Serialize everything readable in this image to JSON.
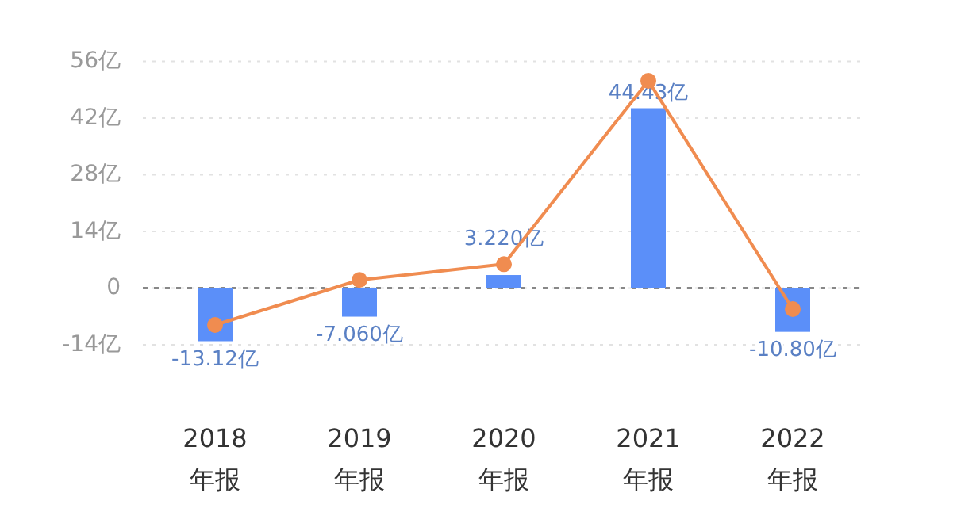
{
  "chart_data": {
    "type": "bar",
    "categories": [
      "2018\n年报",
      "2019\n年报",
      "2020\n年报",
      "2021\n年报",
      "2022\n年报"
    ],
    "series": [
      {
        "color": "#5b8ff9",
        "values": [
          -13.12,
          -7.06,
          3.22,
          44.43,
          -10.8
        ],
        "value_labels": [
          "-13.12亿",
          "-7.060亿",
          "3.220亿",
          "44.43亿",
          "-10.80亿"
        ]
      },
      {
        "type": "line",
        "color": "#f08c50",
        "values": [
          -9.1,
          2.0,
          5.9,
          51.2,
          -5.2
        ],
        "marker": "circle"
      }
    ],
    "ylim": [
      -14,
      56
    ],
    "yticks": [
      {
        "value": -14,
        "label": "-14亿"
      },
      0,
      {
        "value": 14,
        "label": "14亿"
      },
      {
        "value": 28,
        "label": "28亿"
      },
      {
        "value": 42,
        "label": "42亿"
      },
      {
        "value": 56,
        "label": "56亿"
      }
    ],
    "grid": "y",
    "ref_lines": [
      {
        "axis": "y",
        "value": 0,
        "color": "#888888",
        "line_style": "dashed"
      }
    ]
  }
}
